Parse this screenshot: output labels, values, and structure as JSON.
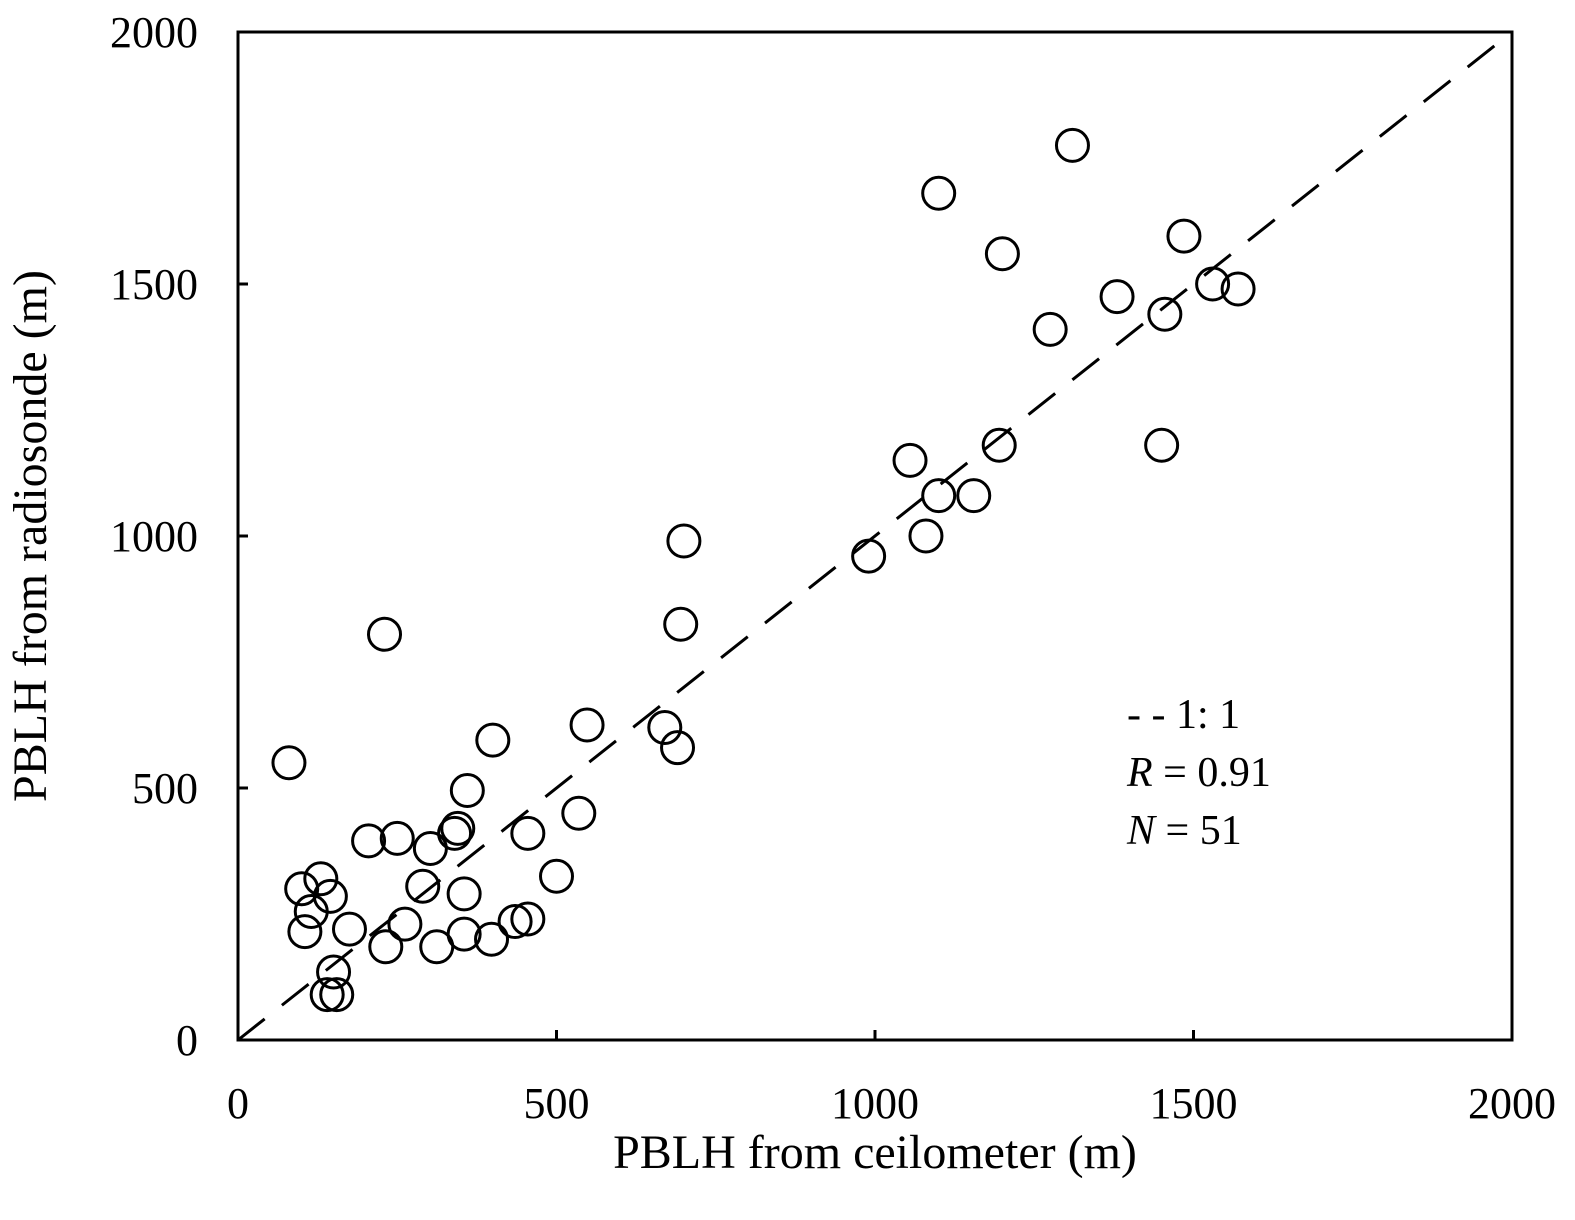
{
  "chart_data": {
    "type": "scatter",
    "title": "",
    "xlabel": "PBLH from ceilometer (m)",
    "ylabel": "PBLH from radiosonde (m)",
    "xlim": [
      0,
      2000
    ],
    "ylim": [
      0,
      2000
    ],
    "xticks": [
      0,
      500,
      1000,
      1500,
      2000
    ],
    "yticks": [
      0,
      500,
      1000,
      1500,
      2000
    ],
    "xtick_labels": [
      "0",
      "500",
      "1000",
      "1500",
      "2000"
    ],
    "ytick_labels": [
      "0",
      "500",
      "1000",
      "1500",
      "2000"
    ],
    "grid": false,
    "reference_line": {
      "name": "1:1",
      "style": "dashed",
      "from": [
        0,
        0
      ],
      "to": [
        2000,
        2000
      ]
    },
    "legend": {
      "position": "bottom-right",
      "line_label": "1: 1",
      "r_symbol": "R",
      "r_value": "= 0.91",
      "n_symbol": "N",
      "n_value": "= 51"
    },
    "series": [
      {
        "name": "PBLH",
        "marker": "open-circle",
        "points": [
          [
            80,
            550
          ],
          [
            100,
            300
          ],
          [
            105,
            215
          ],
          [
            115,
            255
          ],
          [
            130,
            320
          ],
          [
            140,
            90
          ],
          [
            145,
            285
          ],
          [
            150,
            135
          ],
          [
            155,
            90
          ],
          [
            175,
            220
          ],
          [
            205,
            395
          ],
          [
            230,
            805
          ],
          [
            232,
            185
          ],
          [
            250,
            400
          ],
          [
            262,
            230
          ],
          [
            290,
            305
          ],
          [
            302,
            380
          ],
          [
            312,
            185
          ],
          [
            340,
            410
          ],
          [
            345,
            420
          ],
          [
            355,
            210
          ],
          [
            355,
            290
          ],
          [
            360,
            495
          ],
          [
            398,
            200
          ],
          [
            400,
            595
          ],
          [
            435,
            235
          ],
          [
            455,
            410
          ],
          [
            455,
            240
          ],
          [
            500,
            325
          ],
          [
            535,
            450
          ],
          [
            548,
            625
          ],
          [
            670,
            620
          ],
          [
            690,
            580
          ],
          [
            695,
            825
          ],
          [
            700,
            990
          ],
          [
            990,
            960
          ],
          [
            1055,
            1150
          ],
          [
            1080,
            1000
          ],
          [
            1100,
            1080
          ],
          [
            1100,
            1680
          ],
          [
            1155,
            1080
          ],
          [
            1195,
            1180
          ],
          [
            1200,
            1560
          ],
          [
            1275,
            1410
          ],
          [
            1310,
            1775
          ],
          [
            1380,
            1475
          ],
          [
            1450,
            1180
          ],
          [
            1455,
            1440
          ],
          [
            1485,
            1595
          ],
          [
            1530,
            1500
          ],
          [
            1570,
            1490
          ]
        ]
      }
    ]
  }
}
